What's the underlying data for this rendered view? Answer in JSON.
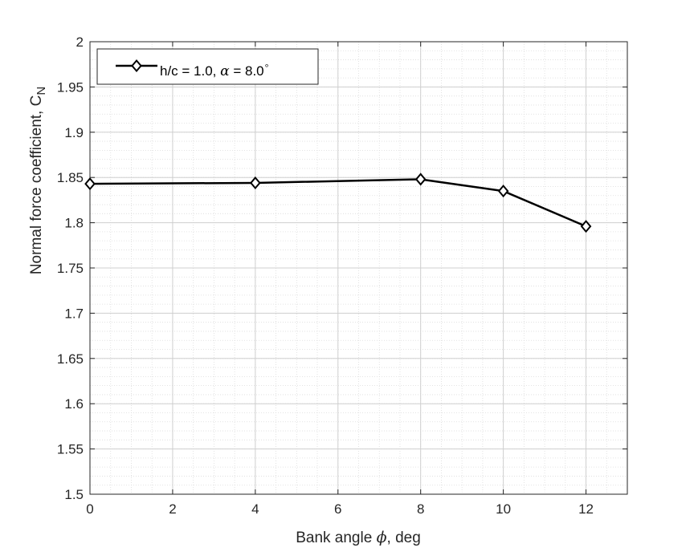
{
  "chart_data": {
    "type": "line",
    "title": "",
    "xlabel": {
      "prefix": "Bank angle ",
      "symbol": "ϕ",
      "suffix": ", deg"
    },
    "ylabel": {
      "prefix": "Normal force coefficient, C",
      "subscript": "N"
    },
    "xlim": [
      0,
      13
    ],
    "ylim": [
      1.5,
      2.0
    ],
    "x_ticks": [
      "0",
      "2",
      "4",
      "6",
      "8",
      "10",
      "12"
    ],
    "y_ticks": [
      "1.5",
      "1.55",
      "1.6",
      "1.65",
      "1.7",
      "1.75",
      "1.8",
      "1.85",
      "1.9",
      "1.95",
      "2"
    ],
    "grid": true,
    "minor_grid": true,
    "legend_position": "top-left",
    "series": [
      {
        "name": {
          "prefix": "h/c = 1.0, ",
          "symbol": "α",
          "suffix": " = 8.0",
          "superscript": "∘"
        },
        "color": "#000000",
        "marker": "diamond",
        "x": [
          0,
          4,
          8,
          10,
          12
        ],
        "y": [
          1.843,
          1.844,
          1.848,
          1.835,
          1.796
        ]
      }
    ]
  }
}
